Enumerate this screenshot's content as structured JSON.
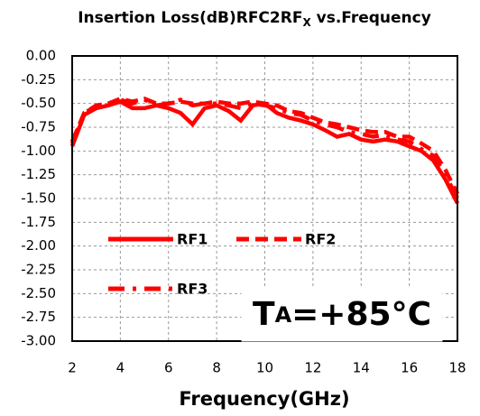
{
  "chart_data": {
    "type": "line",
    "title": "Insertion Loss(dB)RFC2RF",
    "title_subscript": "X",
    "title_suffix": " vs.Frequency",
    "xlabel": "Frequency(GHz)",
    "annotation": "T",
    "annotation_subscript": "A",
    "annotation_suffix": "=+85°C",
    "x": [
      2,
      2.5,
      3,
      3.5,
      4,
      4.5,
      5,
      5.5,
      6,
      6.5,
      7,
      7.5,
      8,
      8.5,
      9,
      9.5,
      10,
      10.5,
      11,
      11.5,
      12,
      12.5,
      13,
      13.5,
      14,
      14.5,
      15,
      15.5,
      16,
      16.5,
      17,
      17.5,
      18
    ],
    "series": [
      {
        "name": "RF1",
        "color": "#ff0000",
        "dash": "none",
        "values": [
          -0.95,
          -0.62,
          -0.55,
          -0.52,
          -0.48,
          -0.55,
          -0.55,
          -0.52,
          -0.55,
          -0.6,
          -0.72,
          -0.55,
          -0.52,
          -0.58,
          -0.68,
          -0.52,
          -0.5,
          -0.6,
          -0.65,
          -0.68,
          -0.72,
          -0.78,
          -0.85,
          -0.82,
          -0.88,
          -0.9,
          -0.88,
          -0.9,
          -0.95,
          -1.0,
          -1.1,
          -1.3,
          -1.55
        ]
      },
      {
        "name": "RF2",
        "color": "#ff0000",
        "dash": "14 7",
        "values": [
          -0.9,
          -0.6,
          -0.52,
          -0.5,
          -0.45,
          -0.48,
          -0.45,
          -0.5,
          -0.5,
          -0.48,
          -0.5,
          -0.5,
          -0.48,
          -0.5,
          -0.5,
          -0.48,
          -0.5,
          -0.52,
          -0.58,
          -0.6,
          -0.65,
          -0.7,
          -0.72,
          -0.75,
          -0.78,
          -0.8,
          -0.8,
          -0.85,
          -0.85,
          -0.92,
          -1.0,
          -1.2,
          -1.45
        ]
      },
      {
        "name": "RF3",
        "color": "#ff0000",
        "dash": "18 9 4 9",
        "values": [
          -0.92,
          -0.6,
          -0.53,
          -0.5,
          -0.46,
          -0.5,
          -0.46,
          -0.52,
          -0.5,
          -0.46,
          -0.52,
          -0.5,
          -0.5,
          -0.52,
          -0.55,
          -0.5,
          -0.52,
          -0.55,
          -0.6,
          -0.62,
          -0.68,
          -0.72,
          -0.75,
          -0.8,
          -0.82,
          -0.85,
          -0.83,
          -0.88,
          -0.9,
          -0.98,
          -1.05,
          -1.25,
          -1.5
        ]
      }
    ],
    "xlim": [
      2,
      18
    ],
    "xticks": [
      2,
      4,
      6,
      8,
      10,
      12,
      14,
      16,
      18
    ],
    "ylim": [
      -3,
      0
    ],
    "yticks": [
      {
        "value": 0,
        "label": "0.00"
      },
      {
        "value": -0.25,
        "label": "-0.25"
      },
      {
        "value": -0.5,
        "label": "-0.50"
      },
      {
        "value": -0.75,
        "label": "-0.75"
      },
      {
        "value": -1,
        "label": "-1.00"
      },
      {
        "value": -1.25,
        "label": "-1.25"
      },
      {
        "value": -1.5,
        "label": "-1.50"
      },
      {
        "value": -1.75,
        "label": "-1.75"
      },
      {
        "value": -2,
        "label": "-2.00"
      },
      {
        "value": -2.25,
        "label": "-2.25"
      },
      {
        "value": -2.5,
        "label": "-2.50"
      },
      {
        "value": -2.75,
        "label": "-2.75"
      },
      {
        "value": -3,
        "label": "-3.00"
      }
    ],
    "grid": true
  }
}
